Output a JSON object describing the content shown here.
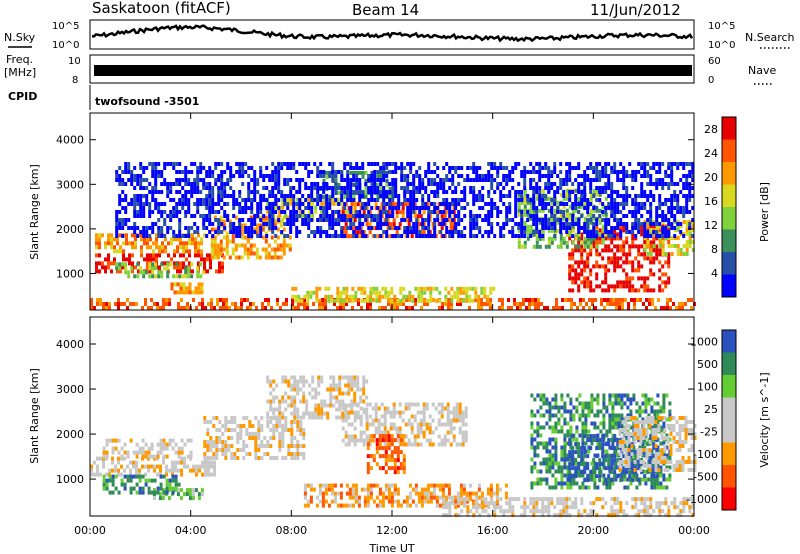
{
  "header": {
    "station": "Saskatoon (fitACF)",
    "beam": "Beam 14",
    "date": "11/Jun/2012"
  },
  "top_panels": {
    "nsky_label": "N.Sky",
    "nsky_ticks": [
      "10^5",
      "10^0"
    ],
    "nsearch_label": "N.Search",
    "nsearch_ticks": [
      "10^5",
      "10^0"
    ],
    "freq_label": "Freq.",
    "freq_unit": "[MHz]",
    "freq_ticks": [
      "10",
      "8"
    ],
    "nave_label": "Nave",
    "nave_ticks": [
      "60",
      "0"
    ],
    "cpid_label": "CPID",
    "cpid_value": "twofsound  -3501"
  },
  "colors": {
    "power": [
      "#0000ff",
      "#264fa8",
      "#3a8f5a",
      "#7fd23c",
      "#d8d820",
      "#ff9900",
      "#ff5500",
      "#e60000"
    ],
    "velocity": [
      "#ff0000",
      "#ff5500",
      "#ff9900",
      "#c8c8c8",
      "#c8c8c8",
      "#66cc33",
      "#2e8b57",
      "#2a52be"
    ]
  },
  "chart_data": [
    {
      "type": "heatmap",
      "name": "power",
      "xlabel": "",
      "ylabel": "Slant Range [km]",
      "x_ticks": [
        "00:00",
        "04:00",
        "08:00",
        "12:00",
        "16:00",
        "20:00",
        "00:00"
      ],
      "xlim_hours": [
        0,
        24
      ],
      "y_ticks": [
        1000,
        2000,
        3000,
        4000
      ],
      "ylim": [
        180,
        4600
      ],
      "colorbar_label": "Power [dB]",
      "colorbar_ticks": [
        4,
        8,
        12,
        16,
        20,
        24,
        28
      ],
      "colorbar_range": [
        0,
        30
      ],
      "bands": [
        {
          "t": [
            0.2,
            5.3
          ],
          "r": [
            1050,
            1450
          ],
          "level": 7
        },
        {
          "t": [
            0.2,
            4.5
          ],
          "r": [
            1500,
            1900
          ],
          "level": 5
        },
        {
          "t": [
            1.0,
            4.5
          ],
          "r": [
            900,
            1250
          ],
          "level": 3
        },
        {
          "t": [
            3.2,
            4.5
          ],
          "r": [
            600,
            800
          ],
          "level": 5
        },
        {
          "t": [
            4.8,
            8.0
          ],
          "r": [
            1400,
            2300
          ],
          "level": 5
        },
        {
          "t": [
            7.0,
            10.5
          ],
          "r": [
            2200,
            2700
          ],
          "level": 4
        },
        {
          "t": [
            10.0,
            14.5
          ],
          "r": [
            1800,
            2600
          ],
          "level": 6
        },
        {
          "t": [
            9.0,
            12.0
          ],
          "r": [
            2700,
            3300
          ],
          "level": 2
        },
        {
          "t": [
            0.0,
            24.0
          ],
          "r": [
            200,
            450
          ],
          "level": 6
        },
        {
          "t": [
            8.0,
            16.0
          ],
          "r": [
            400,
            700
          ],
          "level": 4
        },
        {
          "t": [
            19.0,
            23.0
          ],
          "r": [
            600,
            2100
          ],
          "level": 7
        },
        {
          "t": [
            17.0,
            20.5
          ],
          "r": [
            1600,
            2900
          ],
          "level": 3
        },
        {
          "t": [
            22.0,
            24.0
          ],
          "r": [
            1400,
            2200
          ],
          "level": 4
        },
        {
          "t": [
            1.0,
            24.0
          ],
          "r": [
            1800,
            3500
          ],
          "level": 0
        }
      ]
    },
    {
      "type": "heatmap",
      "name": "velocity",
      "xlabel": "Time UT",
      "ylabel": "Slant Range [km]",
      "x_ticks": [
        "00:00",
        "04:00",
        "08:00",
        "12:00",
        "16:00",
        "20:00",
        "00:00"
      ],
      "xlim_hours": [
        0,
        24
      ],
      "y_ticks": [
        1000,
        2000,
        3000,
        4000
      ],
      "ylim": [
        180,
        4600
      ],
      "colorbar_label": "Velocity [m s^-1]",
      "colorbar_ticks": [
        "-1000",
        "-500",
        "-100",
        "-25",
        "25",
        "100",
        "500",
        "1000"
      ],
      "colorbar_range": [
        -1200,
        1200
      ],
      "bands": [
        {
          "t": [
            0.0,
            5.0
          ],
          "r": [
            1100,
            1500
          ],
          "level": 3
        },
        {
          "t": [
            0.5,
            4.0
          ],
          "r": [
            1500,
            1900
          ],
          "level": 3
        },
        {
          "t": [
            2.5,
            4.5
          ],
          "r": [
            600,
            800
          ],
          "level": 5
        },
        {
          "t": [
            0.5,
            3.5
          ],
          "r": [
            700,
            1100
          ],
          "level": 6
        },
        {
          "t": [
            4.5,
            8.5
          ],
          "r": [
            1500,
            2400
          ],
          "level": 3
        },
        {
          "t": [
            7.0,
            11.0
          ],
          "r": [
            2400,
            3300
          ],
          "level": 3
        },
        {
          "t": [
            10.0,
            15.0
          ],
          "r": [
            1800,
            2700
          ],
          "level": 3
        },
        {
          "t": [
            11.0,
            12.5
          ],
          "r": [
            1200,
            2000
          ],
          "level": 1
        },
        {
          "t": [
            8.5,
            16.5
          ],
          "r": [
            400,
            900
          ],
          "level": 2
        },
        {
          "t": [
            14.0,
            24.0
          ],
          "r": [
            200,
            600
          ],
          "level": 3
        },
        {
          "t": [
            17.5,
            23.0
          ],
          "r": [
            800,
            2900
          ],
          "level": 6
        },
        {
          "t": [
            19.0,
            22.5
          ],
          "r": [
            1000,
            2000
          ],
          "level": 7
        },
        {
          "t": [
            21.0,
            24.0
          ],
          "r": [
            1200,
            2400
          ],
          "level": 3
        }
      ]
    }
  ]
}
